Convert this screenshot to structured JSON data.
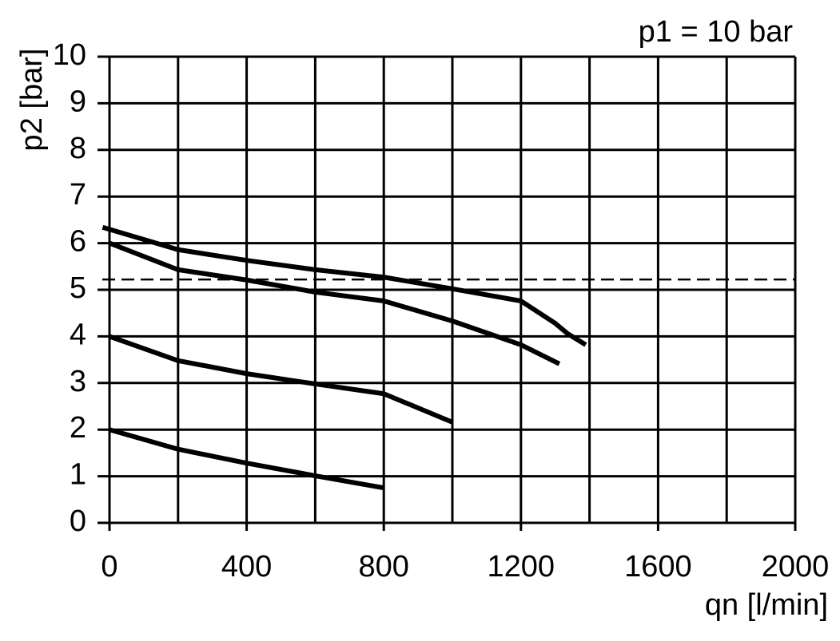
{
  "chart_data": {
    "type": "line",
    "annotation": "p1 = 10 bar",
    "y_label": "p2 [bar]",
    "x_label": "qn [l/min]",
    "xlim": [
      0,
      2000
    ],
    "xticks": [
      0,
      400,
      800,
      1200,
      1600,
      2000
    ],
    "xminor": [
      200,
      600,
      1000,
      1400,
      1800
    ],
    "ylim": [
      0,
      10
    ],
    "yticks": [
      0,
      1,
      2,
      3,
      4,
      5,
      6,
      7,
      8,
      9,
      10
    ],
    "grid": true,
    "reference_lines": [
      {
        "y": 5.22,
        "dashed": true,
        "color": "#000000"
      }
    ],
    "series": [
      {
        "color": "#000000",
        "x": [
          -20,
          200,
          400,
          600,
          800,
          1000,
          1200,
          1300,
          1336,
          1389
        ],
        "values": [
          6.34,
          5.86,
          5.63,
          5.43,
          5.27,
          5.02,
          4.76,
          4.28,
          4.06,
          3.82
        ]
      },
      {
        "color": "#000000",
        "x": [
          0,
          200,
          400,
          600,
          800,
          1000,
          1200,
          1312
        ],
        "values": [
          6.0,
          5.43,
          5.21,
          4.95,
          4.76,
          4.33,
          3.82,
          3.41
        ]
      },
      {
        "color": "#000000",
        "x": [
          0,
          200,
          400,
          600,
          800,
          1000
        ],
        "values": [
          4.0,
          3.48,
          3.2,
          2.98,
          2.77,
          2.16
        ]
      },
      {
        "color": "#000000",
        "x": [
          0,
          200,
          400,
          600,
          800
        ],
        "values": [
          2.0,
          1.58,
          1.28,
          1.01,
          0.75
        ]
      }
    ]
  }
}
